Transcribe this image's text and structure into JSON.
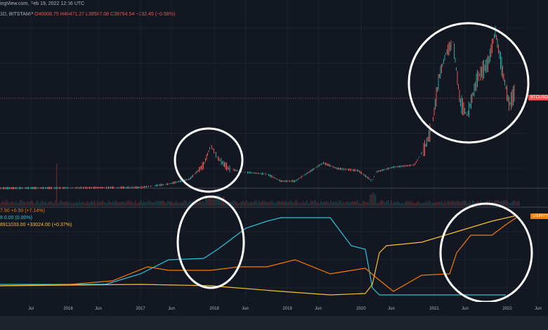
{
  "header": {
    "source": "ingView.com, Feb 19, 2022 12:56 UTC",
    "symbol": "1D, BITSTAMP",
    "open": "O40008.75",
    "high": "H40471.27",
    "low": "L39587.08",
    "close": "C39764.54",
    "change": "−232.45 (−0.58%)"
  },
  "indicators": [
    {
      "text": "7.50  +0.50 (+7.14%)",
      "color": "#f57c00"
    },
    {
      "text": "8  0.00 (0.00%)",
      "color": "#26c6da"
    },
    {
      "text": "8911033.00  +33024.00 (+0.37%)",
      "color": "#fbc02d"
    }
  ],
  "badges": {
    "price": "BTCUSD",
    "indicator": "USIRYY"
  },
  "colors": {
    "up": "#26a69a",
    "down": "#ef5350",
    "cyan": "#26c6da",
    "orange": "#f57c00",
    "yellow": "#fbc02d"
  },
  "x_axis": [
    "Jul",
    "2016",
    "Jun",
    "2017",
    "Jun",
    "2018",
    "Jun",
    "2019",
    "Jun",
    "2020",
    "Jun",
    "2021",
    "Jun",
    "2022",
    "Jun"
  ]
}
